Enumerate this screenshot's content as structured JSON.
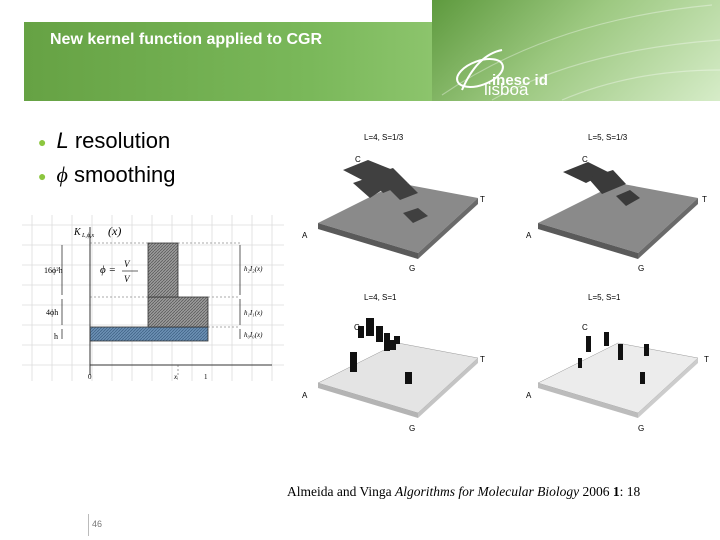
{
  "slide": {
    "title": "New kernel function applied to CGR",
    "bullets": [
      {
        "sym": "L",
        "text": " resolution"
      },
      {
        "sym": "ϕ",
        "text": " smoothing"
      }
    ],
    "page_number": "46"
  },
  "logo": {
    "line1": "inesc id",
    "line2": "lisboa"
  },
  "graph": {
    "kernel_label": "K",
    "kernel_sub": "L,ϕ,x",
    "kernel_x": "(x)",
    "y_labels": [
      "16ϕ²h",
      "4ϕh",
      "h"
    ],
    "phi_eq_lhs": "ϕ =",
    "phi_num": "V",
    "phi_den": "V",
    "right_labels": [
      "h₂I₂(x)",
      "h₁I₁(x)",
      "h₀I₀(x)"
    ],
    "x_labels": [
      "0",
      "xᵢ",
      "1"
    ]
  },
  "panels": [
    {
      "label": "L=4, S=1/3",
      "corners": {
        "c": "C",
        "t": "T",
        "a": "A",
        "g": "G"
      }
    },
    {
      "label": "L=5, S=1/3",
      "corners": {
        "c": "C",
        "t": "T",
        "a": "A",
        "g": "G"
      }
    },
    {
      "label": "L=4, S=1",
      "corners": {
        "c": "C",
        "t": "T",
        "a": "A",
        "g": "G"
      }
    },
    {
      "label": "L=5, S=1",
      "corners": {
        "c": "C",
        "t": "T",
        "a": "A",
        "g": "G"
      }
    }
  ],
  "citation": {
    "authors": "Almeida and Vinga ",
    "journal": "Algorithms for Molecular Biology",
    "year": " 2006 ",
    "volume": "1",
    "issue": ": 18"
  }
}
